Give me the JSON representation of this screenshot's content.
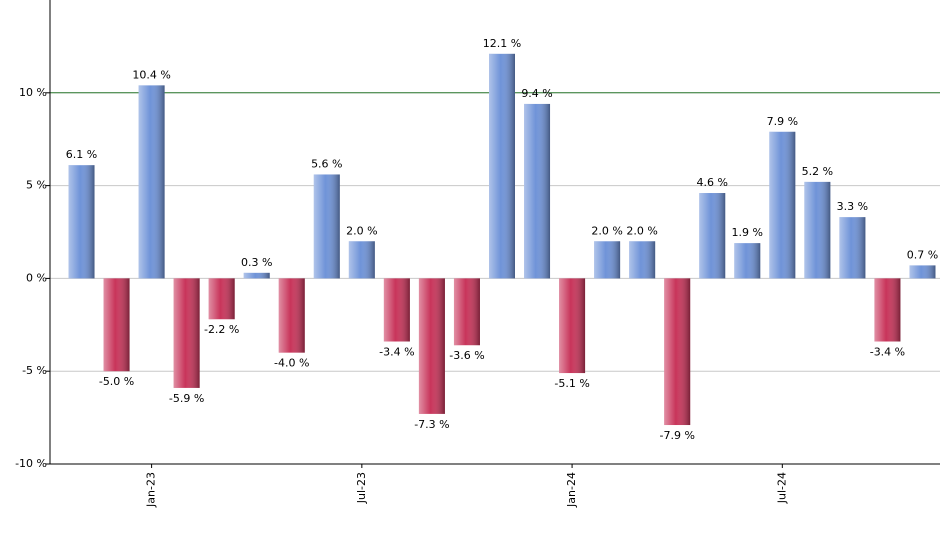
{
  "chart_data": {
    "type": "bar",
    "categories": [
      null,
      null,
      "Jan-23",
      null,
      null,
      null,
      null,
      null,
      "Jul-23",
      null,
      null,
      null,
      null,
      null,
      "Jan-24",
      null,
      null,
      null,
      null,
      null,
      "Jul-24",
      null,
      null,
      null,
      null
    ],
    "values": [
      6.1,
      -5.0,
      10.4,
      -5.9,
      -2.2,
      0.3,
      -4.0,
      5.6,
      2.0,
      -3.4,
      -7.3,
      -3.6,
      12.1,
      9.4,
      -5.1,
      2.0,
      2.0,
      -7.9,
      4.6,
      1.9,
      7.9,
      5.2,
      3.3,
      -3.4,
      0.7
    ],
    "value_labels": [
      "6.1 %",
      "-5.0 %",
      "10.4 %",
      "-5.9 %",
      "-2.2 %",
      "0.3 %",
      "-4.0 %",
      "5.6 %",
      "2.0 %",
      "-3.4 %",
      "-7.3 %",
      "-3.6 %",
      "12.1 %",
      "9.4 %",
      "-5.1 %",
      "2.0 %",
      "2.0 %",
      "-7.9 %",
      "4.6 %",
      "1.9 %",
      "7.9 %",
      "5.2 %",
      "3.3 %",
      "-3.4 %",
      "0.7 %"
    ],
    "positive_color": "#6f93d8",
    "negative_color": "#c8345a",
    "ylim": [
      -10,
      15
    ],
    "yticks": [
      {
        "value": -10,
        "label": "-10 %"
      },
      {
        "value": -5,
        "label": "-5 %"
      },
      {
        "value": 0,
        "label": "0 %"
      },
      {
        "value": 5,
        "label": "5 %"
      },
      {
        "value": 10,
        "label": "10 %"
      }
    ],
    "grid": true,
    "reference_line": 10,
    "reference_color": "#2e7d32"
  }
}
